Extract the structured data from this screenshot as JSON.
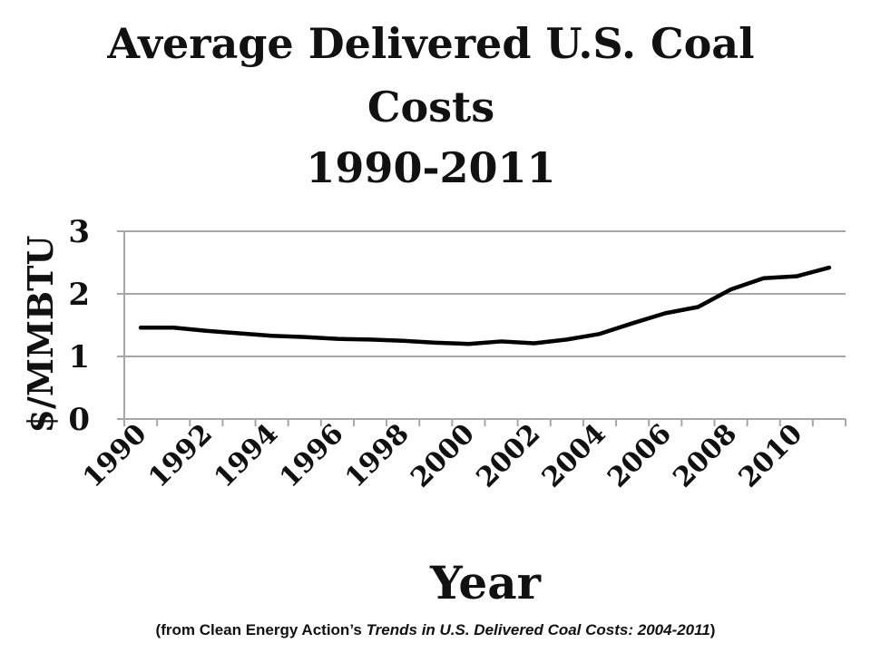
{
  "chart_data": {
    "type": "line",
    "title": [
      "Average Delivered U.S. Coal",
      "Costs",
      "1990-2011"
    ],
    "xlabel": "Year",
    "ylabel": "$/MMBTU",
    "ylim": [
      0,
      3
    ],
    "yticks": [
      "0",
      "1",
      "2",
      "3"
    ],
    "grid": true,
    "categories": [
      1990,
      1991,
      1992,
      1993,
      1994,
      1995,
      1996,
      1997,
      1998,
      1999,
      2000,
      2001,
      2002,
      2003,
      2004,
      2005,
      2006,
      2007,
      2008,
      2009,
      2010,
      2011
    ],
    "xtick_labels": [
      "1990",
      "1992",
      "1994",
      "1996",
      "1998",
      "2000",
      "2002",
      "2004",
      "2006",
      "2008",
      "2010"
    ],
    "values": [
      1.46,
      1.46,
      1.41,
      1.37,
      1.33,
      1.31,
      1.28,
      1.27,
      1.25,
      1.22,
      1.2,
      1.24,
      1.21,
      1.27,
      1.36,
      1.53,
      1.69,
      1.79,
      2.07,
      2.25,
      2.28,
      2.42
    ],
    "line_color": "#000000"
  },
  "footnote": {
    "prefix": "(from Clean Energy Action’s ",
    "italic": "Trends in U.S. Delivered Coal Costs: 2004-2011",
    "suffix": ")"
  }
}
